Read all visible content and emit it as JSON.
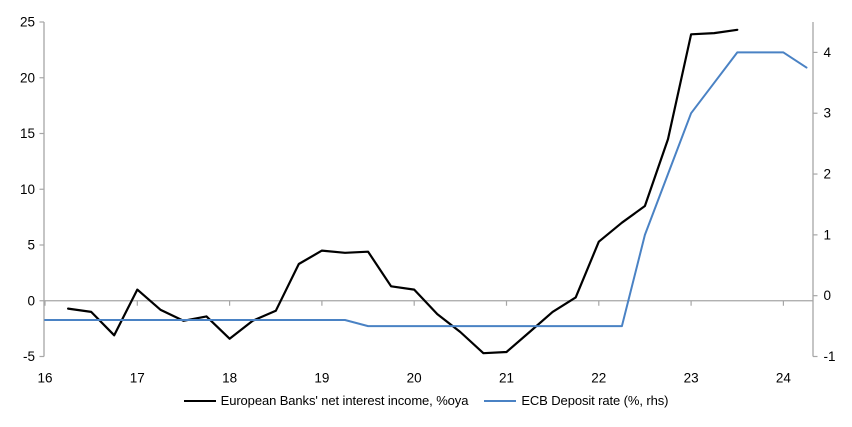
{
  "chart_data": {
    "type": "line",
    "title": "",
    "x_axis": {
      "ticks": [
        16,
        17,
        18,
        19,
        20,
        21,
        22,
        23,
        24
      ],
      "range": [
        16,
        24.33
      ]
    },
    "y_axis_left": {
      "ticks": [
        25,
        20,
        15,
        10,
        5,
        0,
        -5
      ],
      "range": [
        -5,
        25
      ],
      "zero_gridline": true
    },
    "y_axis_right": {
      "ticks": [
        4,
        3,
        2,
        1,
        0,
        -1
      ],
      "range": [
        -1,
        4.5
      ]
    },
    "legend_position": "bottom",
    "series": [
      {
        "name": "European Banks' net interest income, %oya",
        "axis": "left",
        "color": "#000000",
        "points": [
          [
            16.25,
            -0.7
          ],
          [
            16.5,
            -1.0
          ],
          [
            16.75,
            -3.1
          ],
          [
            17.0,
            1.0
          ],
          [
            17.25,
            -0.8
          ],
          [
            17.5,
            -1.8
          ],
          [
            17.75,
            -1.4
          ],
          [
            18.0,
            -3.4
          ],
          [
            18.25,
            -1.8
          ],
          [
            18.5,
            -0.9
          ],
          [
            18.75,
            3.3
          ],
          [
            19.0,
            4.5
          ],
          [
            19.25,
            4.3
          ],
          [
            19.5,
            4.4
          ],
          [
            19.75,
            1.3
          ],
          [
            20.0,
            1.0
          ],
          [
            20.25,
            -1.2
          ],
          [
            20.5,
            -2.8
          ],
          [
            20.75,
            -4.7
          ],
          [
            21.0,
            -4.6
          ],
          [
            21.25,
            -2.8
          ],
          [
            21.5,
            -1.0
          ],
          [
            21.75,
            0.3
          ],
          [
            22.0,
            5.3
          ],
          [
            22.25,
            7.0
          ],
          [
            22.5,
            8.5
          ],
          [
            22.75,
            14.5
          ],
          [
            23.0,
            23.9
          ],
          [
            23.25,
            24.0
          ],
          [
            23.5,
            24.3
          ]
        ]
      },
      {
        "name": "ECB Deposit rate (%, rhs)",
        "axis": "right",
        "color": "#4a82c4",
        "points": [
          [
            16.0,
            -0.4
          ],
          [
            16.25,
            -0.4
          ],
          [
            16.5,
            -0.4
          ],
          [
            16.75,
            -0.4
          ],
          [
            17.0,
            -0.4
          ],
          [
            17.25,
            -0.4
          ],
          [
            17.5,
            -0.4
          ],
          [
            17.75,
            -0.4
          ],
          [
            18.0,
            -0.4
          ],
          [
            18.25,
            -0.4
          ],
          [
            18.5,
            -0.4
          ],
          [
            18.75,
            -0.4
          ],
          [
            19.0,
            -0.4
          ],
          [
            19.25,
            -0.4
          ],
          [
            19.5,
            -0.5
          ],
          [
            19.75,
            -0.5
          ],
          [
            20.0,
            -0.5
          ],
          [
            20.25,
            -0.5
          ],
          [
            20.5,
            -0.5
          ],
          [
            20.75,
            -0.5
          ],
          [
            21.0,
            -0.5
          ],
          [
            21.25,
            -0.5
          ],
          [
            21.5,
            -0.5
          ],
          [
            21.75,
            -0.5
          ],
          [
            22.0,
            -0.5
          ],
          [
            22.25,
            -0.5
          ],
          [
            22.5,
            1.0
          ],
          [
            22.75,
            2.0
          ],
          [
            23.0,
            3.0
          ],
          [
            23.25,
            3.5
          ],
          [
            23.5,
            4.0
          ],
          [
            23.75,
            4.0
          ],
          [
            24.0,
            4.0
          ],
          [
            24.25,
            3.75
          ]
        ]
      }
    ]
  },
  "legend": {
    "nii_label": "European Banks' net interest income, %oya",
    "rate_label": "ECB Deposit rate (%, rhs)"
  },
  "colors": {
    "nii_line": "#000000",
    "deposit_rate_line": "#4a82c4",
    "axis": "#a6a6a6",
    "background": "#ffffff",
    "text": "#000000"
  }
}
